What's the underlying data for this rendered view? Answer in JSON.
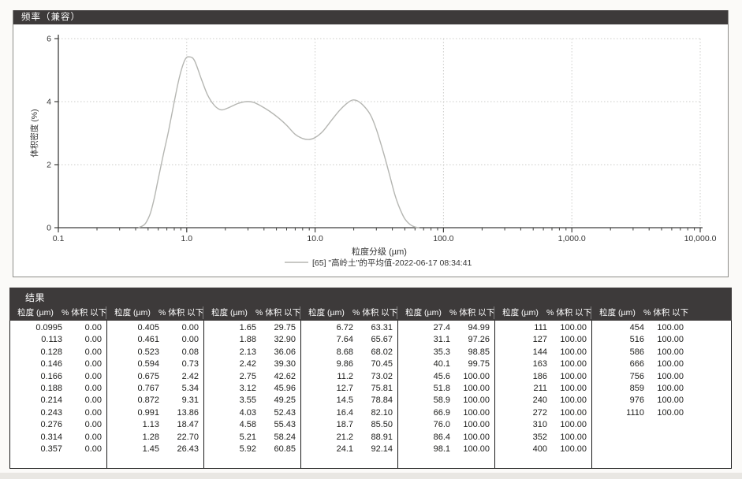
{
  "frequency_panel": {
    "title": "频率（兼容）"
  },
  "chart_data": {
    "type": "line",
    "title": "频率（兼容）",
    "xlabel": "粒度分级 (µm)",
    "ylabel": "体积密度 (%)",
    "x_scale": "log",
    "xlim": [
      0.1,
      10000
    ],
    "ylim": [
      0,
      6
    ],
    "y_ticks": [
      0,
      2,
      4,
      6
    ],
    "x_tick_values": [
      0.1,
      1,
      10,
      100,
      1000,
      10000
    ],
    "x_tick_labels": [
      "0.1",
      "1.0",
      "10.0",
      "100.0",
      "1,000.0",
      "10,000.0"
    ],
    "grid": true,
    "legend_position": "bottom",
    "series": [
      {
        "name": "[65] \"高岭土\"的平均值-2022-06-17 08:34:41",
        "color": "#b5b6b2",
        "points": [
          [
            0.42,
            0
          ],
          [
            0.45,
            0.05
          ],
          [
            0.48,
            0.15
          ],
          [
            0.52,
            0.45
          ],
          [
            0.56,
            0.95
          ],
          [
            0.6,
            1.55
          ],
          [
            0.66,
            2.35
          ],
          [
            0.72,
            3.05
          ],
          [
            0.8,
            4.0
          ],
          [
            0.88,
            4.8
          ],
          [
            0.97,
            5.33
          ],
          [
            1.05,
            5.42
          ],
          [
            1.15,
            5.3
          ],
          [
            1.3,
            4.72
          ],
          [
            1.45,
            4.22
          ],
          [
            1.65,
            3.87
          ],
          [
            1.85,
            3.74
          ],
          [
            2.1,
            3.8
          ],
          [
            2.5,
            3.94
          ],
          [
            2.9,
            4.0
          ],
          [
            3.3,
            3.98
          ],
          [
            3.8,
            3.86
          ],
          [
            4.4,
            3.7
          ],
          [
            5.2,
            3.48
          ],
          [
            6.0,
            3.25
          ],
          [
            7.0,
            2.96
          ],
          [
            8.0,
            2.83
          ],
          [
            9.0,
            2.8
          ],
          [
            10.0,
            2.86
          ],
          [
            11.5,
            3.06
          ],
          [
            13.5,
            3.42
          ],
          [
            15.5,
            3.72
          ],
          [
            17.5,
            3.93
          ],
          [
            19.5,
            4.05
          ],
          [
            21.5,
            4.02
          ],
          [
            24.0,
            3.86
          ],
          [
            27.0,
            3.58
          ],
          [
            30.0,
            3.12
          ],
          [
            34.0,
            2.4
          ],
          [
            38.0,
            1.68
          ],
          [
            42.0,
            1.02
          ],
          [
            46.0,
            0.58
          ],
          [
            50.0,
            0.28
          ],
          [
            55.0,
            0.1
          ],
          [
            60.0,
            0.02
          ],
          [
            65.0,
            0
          ]
        ]
      }
    ]
  },
  "results": {
    "title": "结果",
    "col_size_header": "粒度 (µm)",
    "col_pct_header": "% 体积 以下",
    "groups": [
      [
        [
          "0.0995",
          "0.00"
        ],
        [
          "0.113",
          "0.00"
        ],
        [
          "0.128",
          "0.00"
        ],
        [
          "0.146",
          "0.00"
        ],
        [
          "0.166",
          "0.00"
        ],
        [
          "0.188",
          "0.00"
        ],
        [
          "0.214",
          "0.00"
        ],
        [
          "0.243",
          "0.00"
        ],
        [
          "0.276",
          "0.00"
        ],
        [
          "0.314",
          "0.00"
        ],
        [
          "0.357",
          "0.00"
        ]
      ],
      [
        [
          "0.405",
          "0.00"
        ],
        [
          "0.461",
          "0.00"
        ],
        [
          "0.523",
          "0.08"
        ],
        [
          "0.594",
          "0.73"
        ],
        [
          "0.675",
          "2.42"
        ],
        [
          "0.767",
          "5.34"
        ],
        [
          "0.872",
          "9.31"
        ],
        [
          "0.991",
          "13.86"
        ],
        [
          "1.13",
          "18.47"
        ],
        [
          "1.28",
          "22.70"
        ],
        [
          "1.45",
          "26.43"
        ]
      ],
      [
        [
          "1.65",
          "29.75"
        ],
        [
          "1.88",
          "32.90"
        ],
        [
          "2.13",
          "36.06"
        ],
        [
          "2.42",
          "39.30"
        ],
        [
          "2.75",
          "42.62"
        ],
        [
          "3.12",
          "45.96"
        ],
        [
          "3.55",
          "49.25"
        ],
        [
          "4.03",
          "52.43"
        ],
        [
          "4.58",
          "55.43"
        ],
        [
          "5.21",
          "58.24"
        ],
        [
          "5.92",
          "60.85"
        ]
      ],
      [
        [
          "6.72",
          "63.31"
        ],
        [
          "7.64",
          "65.67"
        ],
        [
          "8.68",
          "68.02"
        ],
        [
          "9.86",
          "70.45"
        ],
        [
          "11.2",
          "73.02"
        ],
        [
          "12.7",
          "75.81"
        ],
        [
          "14.5",
          "78.84"
        ],
        [
          "16.4",
          "82.10"
        ],
        [
          "18.7",
          "85.50"
        ],
        [
          "21.2",
          "88.91"
        ],
        [
          "24.1",
          "92.14"
        ]
      ],
      [
        [
          "27.4",
          "94.99"
        ],
        [
          "31.1",
          "97.26"
        ],
        [
          "35.3",
          "98.85"
        ],
        [
          "40.1",
          "99.75"
        ],
        [
          "45.6",
          "100.00"
        ],
        [
          "51.8",
          "100.00"
        ],
        [
          "58.9",
          "100.00"
        ],
        [
          "66.9",
          "100.00"
        ],
        [
          "76.0",
          "100.00"
        ],
        [
          "86.4",
          "100.00"
        ],
        [
          "98.1",
          "100.00"
        ]
      ],
      [
        [
          "111",
          "100.00"
        ],
        [
          "127",
          "100.00"
        ],
        [
          "144",
          "100.00"
        ],
        [
          "163",
          "100.00"
        ],
        [
          "186",
          "100.00"
        ],
        [
          "211",
          "100.00"
        ],
        [
          "240",
          "100.00"
        ],
        [
          "272",
          "100.00"
        ],
        [
          "310",
          "100.00"
        ],
        [
          "352",
          "100.00"
        ],
        [
          "400",
          "100.00"
        ]
      ],
      [
        [
          "454",
          "100.00"
        ],
        [
          "516",
          "100.00"
        ],
        [
          "586",
          "100.00"
        ],
        [
          "666",
          "100.00"
        ],
        [
          "756",
          "100.00"
        ],
        [
          "859",
          "100.00"
        ],
        [
          "976",
          "100.00"
        ],
        [
          "1110",
          "100.00"
        ]
      ]
    ]
  },
  "colors": {
    "panel_header_bg": "#3d3a3a",
    "panel_header_text": "#ffffff",
    "curve": "#b5b6b2",
    "axis": "#3f3f3d",
    "grid": "#ccccca",
    "table_border": "#1a1a1a",
    "table_text": "#1d1d1b"
  }
}
